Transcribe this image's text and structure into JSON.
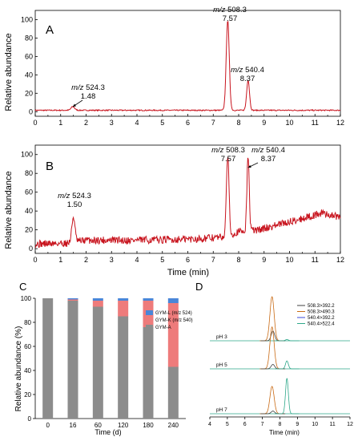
{
  "chart_data": [
    {
      "id": "A",
      "type": "line",
      "panel_label": "A",
      "xlabel": "",
      "ylabel": "Relative abundance",
      "xlim": [
        0,
        12
      ],
      "ylim": [
        -5,
        110
      ],
      "xticks": [
        0,
        1,
        2,
        3,
        4,
        5,
        6,
        7,
        8,
        9,
        10,
        11,
        12
      ],
      "yticks": [
        0,
        20,
        40,
        60,
        80,
        100
      ],
      "color": "#c8141e",
      "baseline": 1.5,
      "noise": 0.6,
      "peaks": [
        {
          "rt": 1.48,
          "height": 4,
          "width": 0.07
        },
        {
          "rt": 7.57,
          "height": 98,
          "width": 0.06
        },
        {
          "rt": 8.37,
          "height": 33,
          "width": 0.055
        }
      ],
      "annotations": [
        {
          "mz": "m/z",
          "value": "524.3",
          "rt": "1.48"
        },
        {
          "mz": "m/z",
          "value": "508.3",
          "rt": "7.57"
        },
        {
          "mz": "m/z",
          "value": "540.4",
          "rt": "8.37"
        }
      ]
    },
    {
      "id": "B",
      "type": "line",
      "panel_label": "B",
      "xlabel": "Time (min)",
      "ylabel": "Relative abundance",
      "xlim": [
        0,
        12
      ],
      "ylim": [
        -5,
        110
      ],
      "xticks": [
        0,
        1,
        2,
        3,
        4,
        5,
        6,
        7,
        8,
        9,
        10,
        11,
        12
      ],
      "yticks": [
        0,
        20,
        40,
        60,
        80,
        100
      ],
      "color": "#c8141e",
      "noise": 4,
      "baseline_points": [
        [
          0,
          5
        ],
        [
          1.3,
          6
        ],
        [
          2,
          9
        ],
        [
          4,
          9
        ],
        [
          6,
          10
        ],
        [
          7.3,
          12
        ],
        [
          8.0,
          18
        ],
        [
          8.8,
          20
        ],
        [
          9.5,
          25
        ],
        [
          10.5,
          32
        ],
        [
          11.3,
          38
        ],
        [
          12,
          33
        ]
      ],
      "peaks": [
        {
          "rt": 1.5,
          "height": 27,
          "width": 0.06
        },
        {
          "rt": 7.57,
          "height": 86,
          "width": 0.05
        },
        {
          "rt": 8.37,
          "height": 80,
          "width": 0.045
        }
      ],
      "annotations": [
        {
          "mz": "m/z",
          "value": "524.3",
          "rt": "1.50"
        },
        {
          "mz": "m/z",
          "value": "508.3",
          "rt": "7.57"
        },
        {
          "mz": "m/z",
          "value": "540.4",
          "rt": "8.37"
        }
      ]
    },
    {
      "id": "C",
      "type": "bar",
      "stacked": true,
      "panel_label": "C",
      "xlabel": "Time (d)",
      "ylabel": "Relative abundance (%)",
      "ylim": [
        0,
        100
      ],
      "yticks": [
        0,
        20,
        40,
        60,
        80,
        100
      ],
      "categories": [
        "0",
        "16",
        "60",
        "120",
        "180",
        "240"
      ],
      "series": [
        {
          "name": "GYM-A",
          "color": "#8c8c8c",
          "values": [
            100,
            98,
            93,
            85,
            76,
            43
          ]
        },
        {
          "name": "GYM-K (m/z 540)",
          "color": "#ee7b7b",
          "values": [
            0,
            1,
            5,
            13,
            22,
            53
          ]
        },
        {
          "name": "GYM-L (m/z 524)",
          "color": "#4a86d8",
          "values": [
            0,
            1,
            2,
            2,
            2,
            4
          ]
        }
      ],
      "legend_order": [
        2,
        1,
        0
      ],
      "legend": "right"
    },
    {
      "id": "D",
      "type": "line",
      "panel_label": "D",
      "xlabel": "Time (min)",
      "ylabel": "",
      "xlim": [
        4,
        12
      ],
      "xticks": [
        4,
        5,
        6,
        7,
        8,
        9,
        10,
        11,
        12
      ],
      "traces": [
        {
          "label": "pH 3",
          "peaks": [
            [
              7.55,
              0.12,
              1.0,
              "#c96a14"
            ],
            [
              7.6,
              0.1,
              0.22,
              "#404040"
            ],
            [
              8.4,
              0.08,
              0.03,
              "#2ea88a"
            ]
          ]
        },
        {
          "label": "pH 5",
          "peaks": [
            [
              7.55,
              0.12,
              0.95,
              "#c96a14"
            ],
            [
              7.6,
              0.1,
              0.1,
              "#404040"
            ],
            [
              8.4,
              0.08,
              0.18,
              "#2ea88a"
            ]
          ]
        },
        {
          "label": "pH 7",
          "peaks": [
            [
              7.55,
              0.12,
              0.62,
              "#c96a14"
            ],
            [
              7.6,
              0.1,
              0.06,
              "#404040"
            ],
            [
              8.4,
              0.08,
              0.8,
              "#2ea88a"
            ]
          ]
        }
      ],
      "legend": [
        {
          "name": "508.3>392.2",
          "color": "#404040"
        },
        {
          "name": "508.3>490.3",
          "color": "#c96a14"
        },
        {
          "name": "540.4>392.2",
          "color": "#3a4ad8"
        },
        {
          "name": "540.4>522.4",
          "color": "#2ea88a"
        }
      ]
    }
  ]
}
